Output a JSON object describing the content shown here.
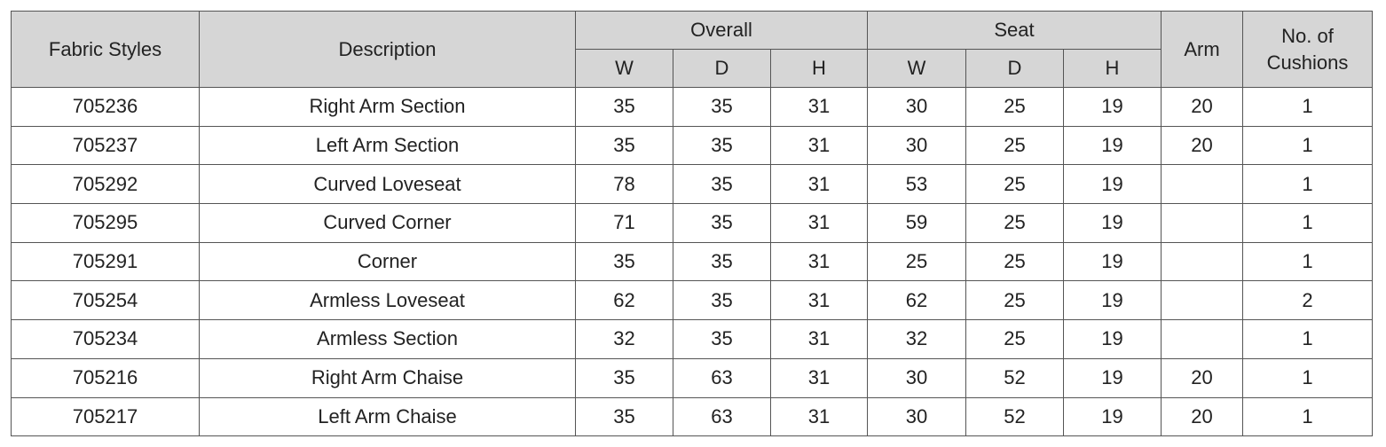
{
  "table": {
    "header": {
      "fabric_styles": "Fabric Styles",
      "description": "Description",
      "overall": "Overall",
      "seat": "Seat",
      "arm": "Arm",
      "cushions": "No. of Cushions",
      "sub": [
        "W",
        "D",
        "H",
        "W",
        "D",
        "H"
      ]
    },
    "rows": [
      [
        705236,
        "Right Arm Section",
        35,
        35,
        31,
        30,
        25,
        19,
        20,
        1
      ],
      [
        705237,
        "Left Arm Section",
        35,
        35,
        31,
        30,
        25,
        19,
        20,
        1
      ],
      [
        705292,
        "Curved Loveseat",
        78,
        35,
        31,
        53,
        25,
        19,
        null,
        1
      ],
      [
        705295,
        "Curved Corner",
        71,
        35,
        31,
        59,
        25,
        19,
        null,
        1
      ],
      [
        705291,
        "Corner",
        35,
        35,
        31,
        25,
        25,
        19,
        null,
        1
      ],
      [
        705254,
        "Armless Loveseat",
        62,
        35,
        31,
        62,
        25,
        19,
        null,
        2
      ],
      [
        705234,
        "Armless Section",
        32,
        35,
        31,
        32,
        25,
        19,
        null,
        1
      ],
      [
        705216,
        "Right Arm Chaise",
        35,
        63,
        31,
        30,
        52,
        19,
        20,
        1
      ],
      [
        705217,
        "Left Arm Chaise",
        35,
        63,
        31,
        30,
        52,
        19,
        20,
        1
      ]
    ]
  }
}
